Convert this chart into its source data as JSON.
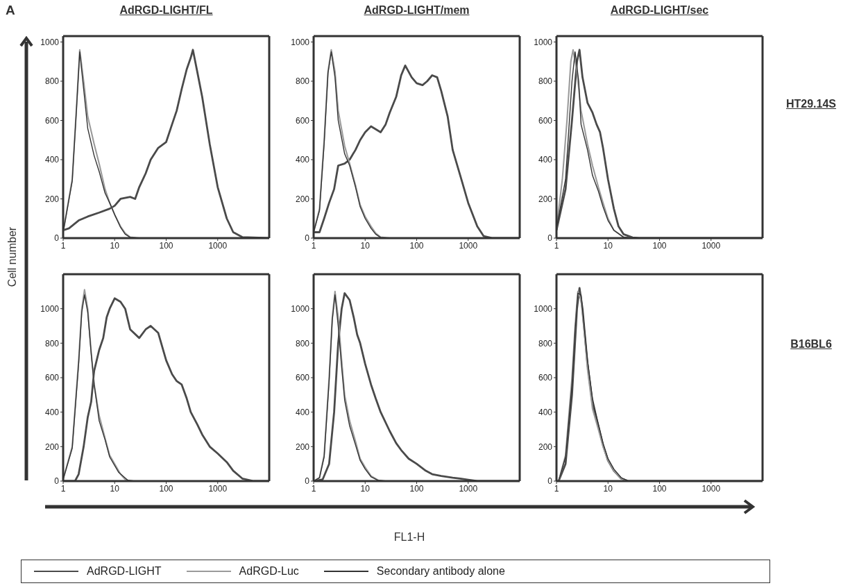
{
  "chart_data": [
    {
      "type": "line",
      "title": "AdRGD-LIGHT/FL",
      "ylabel": "Cell number",
      "annotations": [
        "A"
      ],
      "legend": "bottom",
      "log": "x",
      "marker": "none",
      "xlim": [
        1,
        10000
      ],
      "ylim": [
        0,
        1030
      ],
      "xticks": [
        1,
        10,
        100,
        1000
      ],
      "yticks": [
        0,
        200,
        400,
        600,
        800,
        1000
      ],
      "series": [
        {
          "name": "AdRGD-LIGHT",
          "color": "#4a4a4a",
          "x": [
            1,
            1.3,
            2,
            3,
            5,
            8,
            10,
            13,
            20,
            25,
            30,
            40,
            50,
            70,
            100,
            130,
            160,
            200,
            250,
            300,
            330,
            400,
            500,
            700,
            1000,
            1500,
            2000,
            3000,
            10000
          ],
          "values": [
            40,
            50,
            90,
            110,
            130,
            150,
            165,
            200,
            210,
            200,
            260,
            330,
            400,
            460,
            490,
            580,
            650,
            760,
            860,
            920,
            960,
            850,
            720,
            480,
            260,
            100,
            30,
            5,
            0
          ]
        },
        {
          "name": "AdRGD-Luc",
          "color": "#9a9a9a",
          "x": [
            1,
            1.5,
            1.8,
            2.1,
            2.5,
            3,
            4,
            5,
            6.5,
            8,
            10,
            13,
            16,
            20,
            30,
            10000
          ],
          "values": [
            30,
            300,
            650,
            960,
            800,
            620,
            480,
            380,
            250,
            180,
            120,
            60,
            25,
            5,
            0,
            0
          ]
        },
        {
          "name": "Secondary antibody alone",
          "color": "#333333",
          "x": [
            1,
            1.5,
            1.8,
            2.1,
            2.5,
            3,
            4,
            5,
            6.5,
            8,
            10,
            13,
            16,
            20,
            30,
            10000
          ],
          "values": [
            30,
            290,
            640,
            950,
            760,
            560,
            420,
            340,
            230,
            180,
            120,
            55,
            20,
            4,
            0,
            0
          ]
        }
      ]
    },
    {
      "type": "line",
      "title": "AdRGD-LIGHT/mem",
      "log": "x",
      "marker": "none",
      "xlim": [
        1,
        10000
      ],
      "ylim": [
        0,
        1030
      ],
      "xticks": [
        1,
        10,
        100,
        1000
      ],
      "yticks": [
        0,
        200,
        400,
        600,
        800,
        1000
      ],
      "series": [
        {
          "color": "#4a4a4a",
          "x": [
            1,
            1.3,
            1.6,
            2,
            2.5,
            3,
            4,
            5,
            6.5,
            8,
            10,
            13,
            20,
            25,
            30,
            40,
            50,
            60,
            80,
            100,
            130,
            160,
            200,
            250,
            300,
            400,
            500,
            700,
            1000,
            1500,
            2000,
            3000,
            10000
          ],
          "values": [
            30,
            30,
            100,
            180,
            250,
            370,
            380,
            400,
            450,
            500,
            540,
            570,
            540,
            580,
            640,
            720,
            830,
            880,
            820,
            790,
            780,
            800,
            830,
            820,
            750,
            620,
            450,
            320,
            180,
            60,
            10,
            0,
            0
          ]
        },
        {
          "color": "#9a9a9a",
          "x": [
            1,
            1.3,
            1.6,
            1.9,
            2.2,
            2.6,
            3,
            4,
            5,
            6.5,
            8,
            10,
            13,
            16,
            20,
            30,
            10000
          ],
          "values": [
            30,
            150,
            500,
            850,
            960,
            850,
            650,
            470,
            380,
            270,
            170,
            110,
            60,
            25,
            5,
            0,
            0
          ]
        },
        {
          "color": "#333333",
          "x": [
            1,
            1.3,
            1.6,
            1.9,
            2.2,
            2.6,
            3,
            4,
            5,
            6.5,
            8,
            10,
            13,
            16,
            20,
            30,
            10000
          ],
          "values": [
            30,
            140,
            480,
            840,
            950,
            820,
            600,
            430,
            370,
            260,
            160,
            100,
            50,
            20,
            3,
            0,
            0
          ]
        }
      ]
    },
    {
      "type": "line",
      "title": "AdRGD-LIGHT/sec",
      "annotations": [
        "HT29.14S"
      ],
      "log": "x",
      "marker": "none",
      "xlim": [
        1,
        10000
      ],
      "ylim": [
        0,
        1030
      ],
      "xticks": [
        1,
        10,
        100,
        1000
      ],
      "yticks": [
        0,
        200,
        400,
        600,
        800,
        1000
      ],
      "series": [
        {
          "color": "#4a4a4a",
          "x": [
            1,
            1.5,
            2,
            2.5,
            2.8,
            3.2,
            4,
            5,
            6,
            7,
            8,
            10,
            13,
            16,
            20,
            30,
            40,
            10000
          ],
          "values": [
            40,
            250,
            600,
            900,
            960,
            820,
            690,
            640,
            580,
            540,
            460,
            300,
            150,
            60,
            20,
            3,
            0,
            0
          ]
        },
        {
          "color": "#9a9a9a",
          "x": [
            1,
            1.3,
            1.6,
            1.9,
            2.1,
            2.5,
            3,
            4,
            5,
            6.5,
            8,
            10,
            13,
            20,
            30,
            10000
          ],
          "values": [
            50,
            300,
            600,
            900,
            960,
            850,
            650,
            480,
            370,
            260,
            180,
            100,
            40,
            5,
            0,
            0
          ]
        },
        {
          "color": "#333333",
          "x": [
            1,
            1.5,
            2,
            2.3,
            2.7,
            3,
            4,
            5,
            6.5,
            8,
            10,
            13,
            20,
            30,
            10000
          ],
          "values": [
            50,
            300,
            800,
            950,
            800,
            580,
            450,
            320,
            240,
            160,
            90,
            40,
            5,
            0,
            0
          ]
        }
      ]
    },
    {
      "type": "line",
      "log": "x",
      "marker": "none",
      "xlim": [
        1,
        10000
      ],
      "ylim": [
        0,
        1200
      ],
      "xticks": [
        1,
        10,
        100,
        1000
      ],
      "yticks": [
        0,
        200,
        400,
        600,
        800,
        1000
      ],
      "series": [
        {
          "color": "#4a4a4a",
          "x": [
            1,
            1.7,
            2,
            2.5,
            3,
            3.5,
            4,
            5,
            6,
            7,
            8,
            10,
            13,
            16,
            20,
            30,
            40,
            50,
            70,
            100,
            130,
            160,
            200,
            250,
            300,
            400,
            500,
            700,
            1000,
            1500,
            2000,
            3000,
            5000,
            10000
          ],
          "values": [
            0,
            0,
            40,
            200,
            370,
            460,
            640,
            760,
            830,
            950,
            1000,
            1060,
            1040,
            1000,
            880,
            830,
            880,
            900,
            860,
            700,
            620,
            580,
            560,
            480,
            400,
            330,
            270,
            200,
            160,
            110,
            60,
            15,
            0,
            0
          ]
        },
        {
          "color": "#9a9a9a",
          "x": [
            1,
            1.5,
            2,
            2.3,
            2.6,
            3,
            3.5,
            4,
            5,
            6.5,
            8,
            10,
            13,
            16,
            20,
            10000
          ],
          "values": [
            10,
            200,
            700,
            1000,
            1110,
            1000,
            750,
            560,
            380,
            250,
            150,
            100,
            40,
            10,
            0,
            0
          ]
        },
        {
          "color": "#333333",
          "x": [
            1,
            1.5,
            2,
            2.3,
            2.6,
            3,
            3.5,
            4,
            5,
            6.5,
            8,
            12,
            18,
            25,
            10000
          ],
          "values": [
            10,
            190,
            680,
            980,
            1080,
            980,
            740,
            560,
            350,
            240,
            140,
            50,
            5,
            0,
            0
          ]
        }
      ]
    },
    {
      "type": "line",
      "xlabel": "FL1-H",
      "log": "x",
      "marker": "none",
      "xlim": [
        1,
        10000
      ],
      "ylim": [
        0,
        1200
      ],
      "xticks": [
        1,
        10,
        100,
        1000
      ],
      "yticks": [
        0,
        200,
        400,
        600,
        800,
        1000
      ],
      "series": [
        {
          "color": "#4a4a4a",
          "x": [
            1,
            1.5,
            2,
            2.5,
            3,
            3.5,
            4,
            5,
            6,
            7,
            8,
            10,
            13,
            16,
            20,
            30,
            40,
            50,
            70,
            100,
            150,
            200,
            300,
            500,
            700,
            1000,
            1500,
            10000
          ],
          "values": [
            0,
            10,
            100,
            400,
            800,
            1000,
            1090,
            1050,
            950,
            850,
            800,
            680,
            560,
            480,
            400,
            290,
            220,
            180,
            130,
            100,
            60,
            40,
            30,
            20,
            15,
            8,
            0,
            0
          ]
        },
        {
          "color": "#9a9a9a",
          "x": [
            1,
            1.3,
            1.6,
            2,
            2.3,
            2.6,
            3,
            3.5,
            4,
            5,
            6.5,
            8,
            10,
            13,
            18,
            25,
            10000
          ],
          "values": [
            0,
            20,
            150,
            600,
            950,
            1100,
            950,
            700,
            500,
            350,
            230,
            130,
            80,
            30,
            5,
            0,
            0
          ]
        },
        {
          "color": "#333333",
          "x": [
            1,
            1.3,
            1.6,
            2,
            2.3,
            2.6,
            3,
            3.5,
            4,
            5,
            6.5,
            8,
            10,
            13,
            18,
            25,
            10000
          ],
          "values": [
            0,
            20,
            140,
            580,
            930,
            1080,
            900,
            660,
            470,
            320,
            210,
            120,
            70,
            25,
            4,
            0,
            0
          ]
        }
      ]
    },
    {
      "type": "line",
      "annotations": [
        "B16BL6"
      ],
      "log": "x",
      "marker": "none",
      "xlim": [
        1,
        10000
      ],
      "ylim": [
        0,
        1200
      ],
      "xticks": [
        1,
        10,
        100,
        1000
      ],
      "yticks": [
        0,
        200,
        400,
        600,
        800,
        1000
      ],
      "series": [
        {
          "color": "#4a4a4a",
          "x": [
            1.1,
            1.5,
            2,
            2.5,
            2.8,
            3.2,
            4,
            5,
            6.5,
            8,
            10,
            13,
            18,
            25,
            10000
          ],
          "values": [
            0,
            100,
            500,
            1000,
            1120,
            1000,
            680,
            450,
            320,
            210,
            120,
            60,
            15,
            0,
            0
          ]
        },
        {
          "color": "#9a9a9a",
          "x": [
            1.1,
            1.5,
            2,
            2.3,
            2.6,
            3,
            3.5,
            4,
            5,
            6.5,
            8,
            10,
            13,
            18,
            25,
            10000
          ],
          "values": [
            0,
            150,
            600,
            900,
            1100,
            1050,
            850,
            650,
            420,
            300,
            200,
            120,
            60,
            15,
            0,
            0
          ]
        },
        {
          "color": "#333333",
          "x": [
            1.1,
            1.5,
            2,
            2.3,
            2.6,
            3,
            4,
            5,
            6.5,
            8,
            10,
            13,
            18,
            25,
            10000
          ],
          "values": [
            0,
            140,
            560,
            880,
            1090,
            1080,
            700,
            480,
            330,
            220,
            130,
            70,
            20,
            0,
            0
          ]
        }
      ]
    }
  ]
}
